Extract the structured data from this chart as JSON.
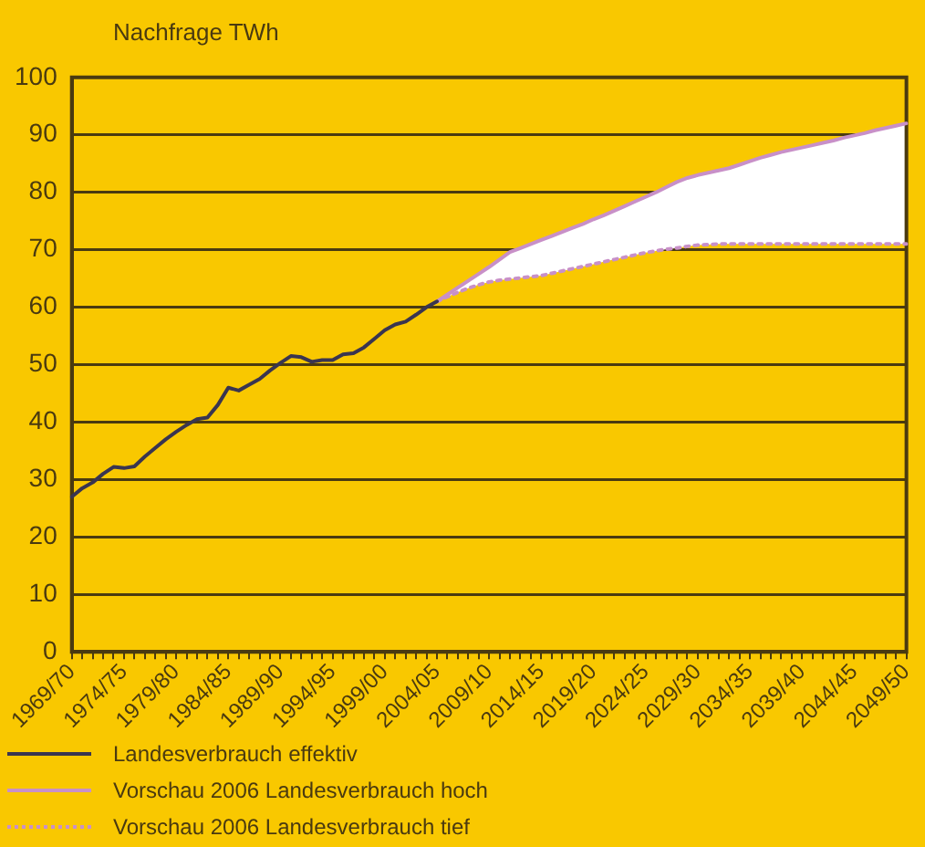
{
  "chart_data": {
    "type": "line",
    "ylabel": "Nachfrage TWh",
    "categories": [
      "1969/70",
      null,
      null,
      null,
      null,
      "1974/75",
      null,
      null,
      null,
      null,
      "1979/80",
      null,
      null,
      null,
      null,
      "1984/85",
      null,
      null,
      null,
      null,
      "1989/90",
      null,
      null,
      null,
      null,
      "1994/95",
      null,
      null,
      null,
      null,
      "1999/00",
      null,
      null,
      null,
      null,
      "2004/05",
      null,
      null,
      null,
      null,
      "2009/10",
      null,
      null,
      null,
      null,
      "2014/15",
      null,
      null,
      null,
      null,
      "2019/20",
      null,
      null,
      null,
      null,
      "2024/25",
      null,
      null,
      null,
      null,
      "2029/30",
      null,
      null,
      null,
      null,
      "2034/35",
      null,
      null,
      null,
      null,
      "2039/40",
      null,
      null,
      null,
      null,
      "2044/45",
      null,
      null,
      null,
      null,
      "2049/50"
    ],
    "series": [
      {
        "name": "Landesverbrauch effektiv",
        "color": "#3a3550",
        "line_style": "solid",
        "values": [
          27,
          28.5,
          29.5,
          31,
          32.2,
          32,
          32.3,
          34,
          35.5,
          37,
          38.3,
          39.5,
          40.5,
          40.8,
          43,
          46,
          45.5,
          46.5,
          47.5,
          49,
          50.3,
          51.5,
          51.3,
          50.5,
          50.8,
          50.8,
          51.8,
          52,
          53,
          54.5,
          56,
          57,
          57.5,
          58.7,
          60,
          61,
          null,
          null,
          null,
          null,
          null,
          null,
          null,
          null,
          null,
          null,
          null,
          null,
          null,
          null,
          null,
          null,
          null,
          null,
          null,
          null,
          null,
          null,
          null,
          null,
          null,
          null,
          null,
          null,
          null,
          null,
          null,
          null,
          null,
          null,
          null,
          null,
          null,
          null,
          null,
          null,
          null,
          null,
          null,
          null,
          null
        ]
      },
      {
        "name": "Vorschau 2006 Landesverbrauch hoch",
        "color": "#c890c8",
        "line_style": "solid",
        "values": [
          null,
          null,
          null,
          null,
          null,
          null,
          null,
          null,
          null,
          null,
          null,
          null,
          null,
          null,
          null,
          null,
          null,
          null,
          null,
          null,
          null,
          null,
          null,
          null,
          null,
          null,
          null,
          null,
          null,
          null,
          null,
          null,
          null,
          null,
          null,
          61,
          62.2,
          63.4,
          64.6,
          65.8,
          67,
          68.3,
          69.6,
          70.3,
          71,
          71.7,
          72.4,
          73.1,
          73.8,
          74.5,
          75.3,
          76,
          76.8,
          77.6,
          78.4,
          79.2,
          80,
          80.9,
          81.8,
          82.5,
          83,
          83.4,
          83.8,
          84.2,
          84.8,
          85.4,
          86,
          86.5,
          87,
          87.4,
          87.8,
          88.2,
          88.6,
          89,
          89.5,
          89.9,
          90.3,
          90.8,
          91.2,
          91.6,
          92
        ]
      },
      {
        "name": "Vorschau 2006 Landesverbrauch tief",
        "color": "#c890c8",
        "line_style": "dotted",
        "values": [
          null,
          null,
          null,
          null,
          null,
          null,
          null,
          null,
          null,
          null,
          null,
          null,
          null,
          null,
          null,
          null,
          null,
          null,
          null,
          null,
          null,
          null,
          null,
          null,
          null,
          null,
          null,
          null,
          null,
          null,
          null,
          null,
          null,
          null,
          null,
          61,
          61.8,
          62.6,
          63.3,
          63.9,
          64.4,
          64.7,
          64.9,
          65.1,
          65.3,
          65.5,
          65.9,
          66.3,
          66.7,
          67.1,
          67.5,
          67.9,
          68.3,
          68.7,
          69.1,
          69.5,
          69.8,
          70.1,
          70.3,
          70.6,
          70.8,
          70.9,
          71,
          71,
          71,
          71,
          71,
          71,
          71,
          71,
          71,
          71,
          71,
          71,
          71,
          71,
          71,
          71,
          71,
          71,
          71
        ]
      }
    ],
    "ylim": [
      0,
      100
    ],
    "yticks": [
      0,
      10,
      20,
      30,
      40,
      50,
      60,
      70,
      80,
      90,
      100
    ],
    "grid": "y",
    "legend": "bottom",
    "marker": "none"
  }
}
